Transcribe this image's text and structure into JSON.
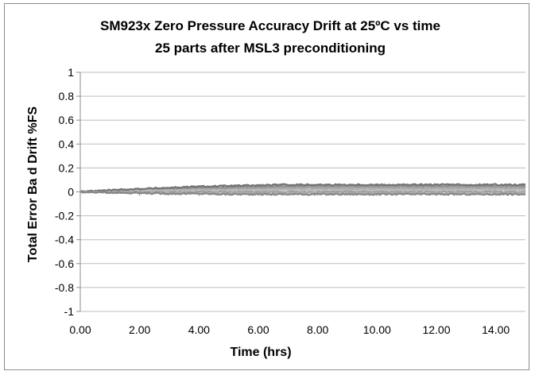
{
  "chart_data": {
    "type": "line",
    "title": "SM923x Zero Pressure Accuracy Drift at 25ºC vs time",
    "subtitle": "25 parts after MSL3 preconditioning",
    "xlabel": "Time (hrs)",
    "ylabel": "Total Error Ba d Drift %FS",
    "xlim": [
      0,
      15
    ],
    "ylim": [
      -1,
      1
    ],
    "x_ticks": [
      "0.00",
      "2.00",
      "4.00",
      "6.00",
      "8.00",
      "10.00",
      "12.00",
      "14.00"
    ],
    "x_tick_values": [
      0,
      2,
      4,
      6,
      8,
      10,
      12,
      14
    ],
    "y_ticks": [
      "1",
      "0.8",
      "0.6",
      "0.4",
      "0.2",
      "0",
      "-0.2",
      "-0.4",
      "-0.6",
      "-0.8",
      "-1"
    ],
    "y_tick_values": [
      1,
      0.8,
      0.6,
      0.4,
      0.2,
      0,
      -0.2,
      -0.4,
      -0.6,
      -0.8,
      -1
    ],
    "grid": true,
    "legend": "none",
    "series_colors": [
      "#7f7f7f",
      "#8c8c8c",
      "#999999",
      "#a6a6a6",
      "#b3b3b3",
      "#bfbfbf",
      "#737373",
      "#9e9e9e",
      "#adadad",
      "#858585"
    ],
    "x": [
      0,
      1,
      2,
      3,
      4,
      5,
      6,
      7,
      8,
      9,
      10,
      11,
      12,
      13,
      14,
      15
    ],
    "series": [
      {
        "values": [
          0.0,
          0.01,
          0.02,
          0.03,
          0.035,
          0.04,
          0.045,
          0.05,
          0.05,
          0.05,
          0.05,
          0.05,
          0.05,
          0.05,
          0.05,
          0.05
        ]
      },
      {
        "values": [
          0.0,
          0.01,
          0.02,
          0.025,
          0.03,
          0.035,
          0.04,
          0.045,
          0.045,
          0.045,
          0.045,
          0.045,
          0.045,
          0.045,
          0.045,
          0.045
        ]
      },
      {
        "values": [
          0.0,
          0.005,
          0.015,
          0.02,
          0.025,
          0.03,
          0.035,
          0.035,
          0.04,
          0.04,
          0.04,
          0.04,
          0.04,
          0.04,
          0.04,
          0.04
        ]
      },
      {
        "values": [
          0.0,
          0.005,
          0.01,
          0.015,
          0.02,
          0.02,
          0.025,
          0.03,
          0.03,
          0.03,
          0.03,
          0.03,
          0.03,
          0.03,
          0.03,
          0.03
        ]
      },
      {
        "values": [
          0.0,
          0.005,
          0.01,
          0.01,
          0.015,
          0.015,
          0.02,
          0.02,
          0.02,
          0.02,
          0.02,
          0.02,
          0.02,
          0.02,
          0.02,
          0.02
        ]
      },
      {
        "values": [
          0.0,
          0.0,
          0.005,
          0.005,
          0.01,
          0.01,
          0.01,
          0.01,
          0.01,
          0.01,
          0.01,
          0.01,
          0.01,
          0.01,
          0.01,
          0.01
        ]
      },
      {
        "values": [
          0.0,
          0.015,
          0.025,
          0.035,
          0.045,
          0.05,
          0.055,
          0.06,
          0.06,
          0.06,
          0.06,
          0.06,
          0.06,
          0.06,
          0.06,
          0.06
        ]
      },
      {
        "values": [
          0.0,
          0.0,
          0.0,
          0.0,
          0.0,
          0.0,
          0.0,
          0.0,
          0.0,
          0.0,
          0.0,
          0.0,
          0.0,
          0.0,
          0.0,
          0.0
        ]
      },
      {
        "values": [
          0.0,
          -0.005,
          -0.005,
          -0.01,
          -0.01,
          -0.01,
          -0.01,
          -0.01,
          -0.01,
          -0.01,
          -0.01,
          -0.01,
          -0.01,
          -0.01,
          -0.01,
          -0.01
        ]
      },
      {
        "values": [
          0.0,
          -0.005,
          -0.01,
          -0.015,
          -0.015,
          -0.02,
          -0.02,
          -0.02,
          -0.02,
          -0.02,
          -0.02,
          -0.02,
          -0.02,
          -0.02,
          -0.02,
          -0.02
        ]
      }
    ]
  }
}
